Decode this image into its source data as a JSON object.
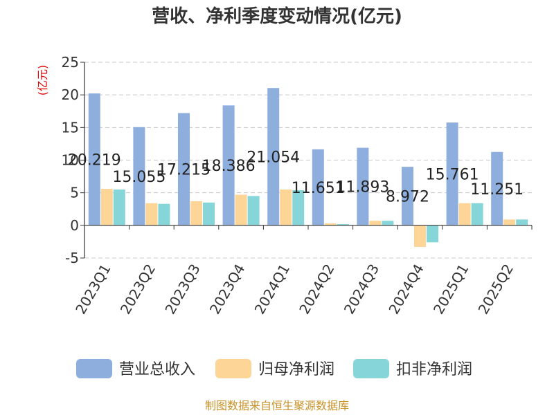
{
  "chart_data": {
    "type": "bar",
    "title": "营收、净利季度变动情况(亿元)",
    "ylabel": "(亿元)",
    "xlabel": "",
    "categories": [
      "2023Q1",
      "2023Q2",
      "2023Q3",
      "2023Q4",
      "2024Q1",
      "2024Q2",
      "2024Q3",
      "2024Q4",
      "2025Q1",
      "2025Q2"
    ],
    "series": [
      {
        "name": "营业总收入",
        "color": "#8eafde",
        "values": [
          20.219,
          15.055,
          17.215,
          18.386,
          21.054,
          11.651,
          11.893,
          8.972,
          15.761,
          11.251
        ],
        "data_labels": [
          "20.219",
          "15.055",
          "17.215",
          "18.386",
          "21.054",
          "11.651",
          "11.893",
          "8.972",
          "15.761",
          "11.251"
        ]
      },
      {
        "name": "归母净利润",
        "color": "#fdd596",
        "values": [
          5.6,
          3.4,
          3.7,
          4.7,
          5.5,
          0.3,
          0.7,
          -3.3,
          3.4,
          0.9
        ]
      },
      {
        "name": "扣非净利润",
        "color": "#86d5d8",
        "values": [
          5.5,
          3.3,
          3.5,
          4.5,
          5.4,
          0.2,
          0.7,
          -2.6,
          3.4,
          0.9
        ]
      }
    ],
    "ylim": [
      -5,
      25
    ],
    "yticks": [
      -5,
      0,
      5,
      10,
      15,
      20,
      25
    ],
    "grid": true,
    "legend_position": "bottom",
    "source": "制图数据来自恒生聚源数据库"
  }
}
